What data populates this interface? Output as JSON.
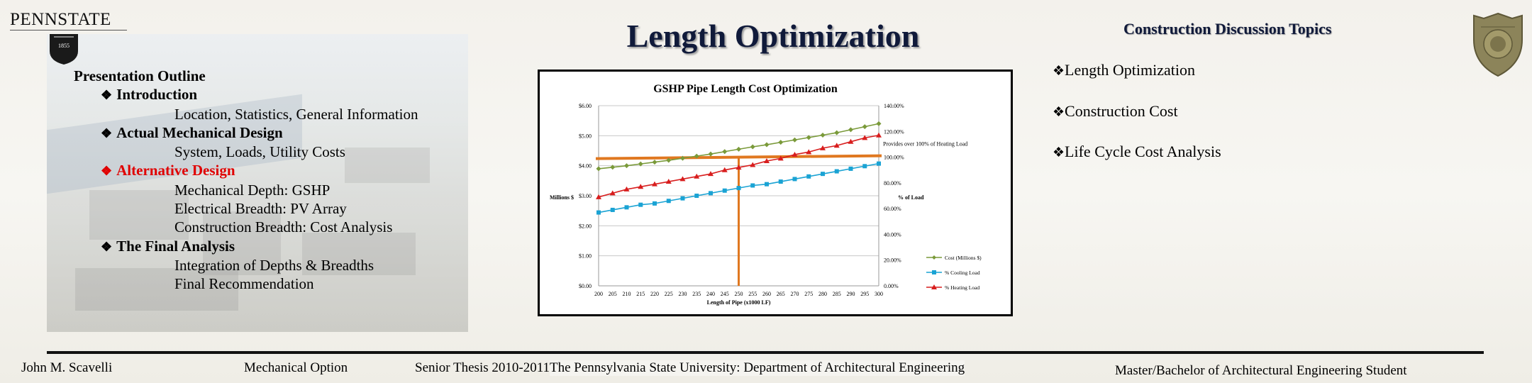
{
  "logo": {
    "wordmark": "PENNSTATE",
    "shield_text": "1855"
  },
  "title": "Length Optimization",
  "outline": [
    {
      "level": 0,
      "text": "Presentation Outline"
    },
    {
      "level": 1,
      "text": "Introduction"
    },
    {
      "level": 2,
      "text": "Location, Statistics, General Information"
    },
    {
      "level": 1,
      "text": "Actual Mechanical Design"
    },
    {
      "level": 2,
      "text": "System, Loads, Utility Costs"
    },
    {
      "level": 1,
      "text": "Alternative Design",
      "active": true
    },
    {
      "level": 2,
      "text": "Mechanical Depth: GSHP"
    },
    {
      "level": 2,
      "text": "Electrical Breadth: PV Array"
    },
    {
      "level": 2,
      "text": "Construction Breadth: Cost Analysis"
    },
    {
      "level": 1,
      "text": "The Final Analysis"
    },
    {
      "level": 2,
      "text": "Integration of Depths & Breadths"
    },
    {
      "level": 2,
      "text": "Final Recommendation"
    }
  ],
  "topics": {
    "heading": "Construction Discussion Topics",
    "items": [
      "Length Optimization",
      "Construction Cost",
      "Life Cycle Cost Analysis"
    ]
  },
  "footer": {
    "name": "John M. Scavelli",
    "option": "Mechanical Option",
    "thesis": "Senior Thesis 2010-2011",
    "university": "The Pennsylvania State University: Department of Architectural Engineering",
    "degree": "Master/Bachelor of Architectural Engineering Student"
  },
  "colors": {
    "cost": "#7a9a3a",
    "cooling": "#1aa3d4",
    "heating": "#d81e1e",
    "threshold": "#e07820"
  },
  "chart_data": {
    "type": "line",
    "title": "GSHP Pipe Length Cost Optimization",
    "xlabel": "Length of Pipe (x1000 LF)",
    "ylabel_left": "Millions $",
    "ylabel_right": "% of Load",
    "x": [
      200,
      205,
      210,
      215,
      220,
      225,
      230,
      235,
      240,
      245,
      250,
      255,
      260,
      265,
      270,
      275,
      280,
      285,
      290,
      295,
      300
    ],
    "y_left_ticks": [
      "$0.00",
      "$1.00",
      "$2.00",
      "$3.00",
      "$4.00",
      "$5.00",
      "$6.00"
    ],
    "y_left_range": [
      0,
      6
    ],
    "y_right_ticks": [
      "0.00%",
      "20.00%",
      "40.00%",
      "60.00%",
      "80.00%",
      "100.00%",
      "120.00%",
      "140.00%"
    ],
    "y_right_range": [
      0,
      140
    ],
    "series": [
      {
        "name": "Cost (Millions $)",
        "axis": "left",
        "marker": "diamond",
        "colorKey": "cost",
        "values": [
          3.9,
          3.95,
          4.0,
          4.06,
          4.12,
          4.18,
          4.25,
          4.32,
          4.39,
          4.47,
          4.55,
          4.63,
          4.7,
          4.78,
          4.86,
          4.94,
          5.02,
          5.1,
          5.2,
          5.3,
          5.4
        ]
      },
      {
        "name": "% Cooling Load",
        "axis": "right",
        "marker": "square",
        "colorKey": "cooling",
        "values": [
          57,
          59,
          61,
          63,
          64,
          66,
          68,
          70,
          72,
          74,
          76,
          78,
          79,
          81,
          83,
          85,
          87,
          89,
          91,
          93,
          95
        ]
      },
      {
        "name": "% Heating Load",
        "axis": "right",
        "marker": "triangle",
        "colorKey": "heating",
        "values": [
          69,
          72,
          75,
          77,
          79,
          81,
          83,
          85,
          87,
          90,
          92,
          94,
          97,
          99,
          102,
          104,
          107,
          109,
          112,
          115,
          117
        ]
      }
    ],
    "annotation": "Provides over 100% of Heating Load",
    "threshold_percent": 100,
    "vertical_marker_x": 250
  }
}
